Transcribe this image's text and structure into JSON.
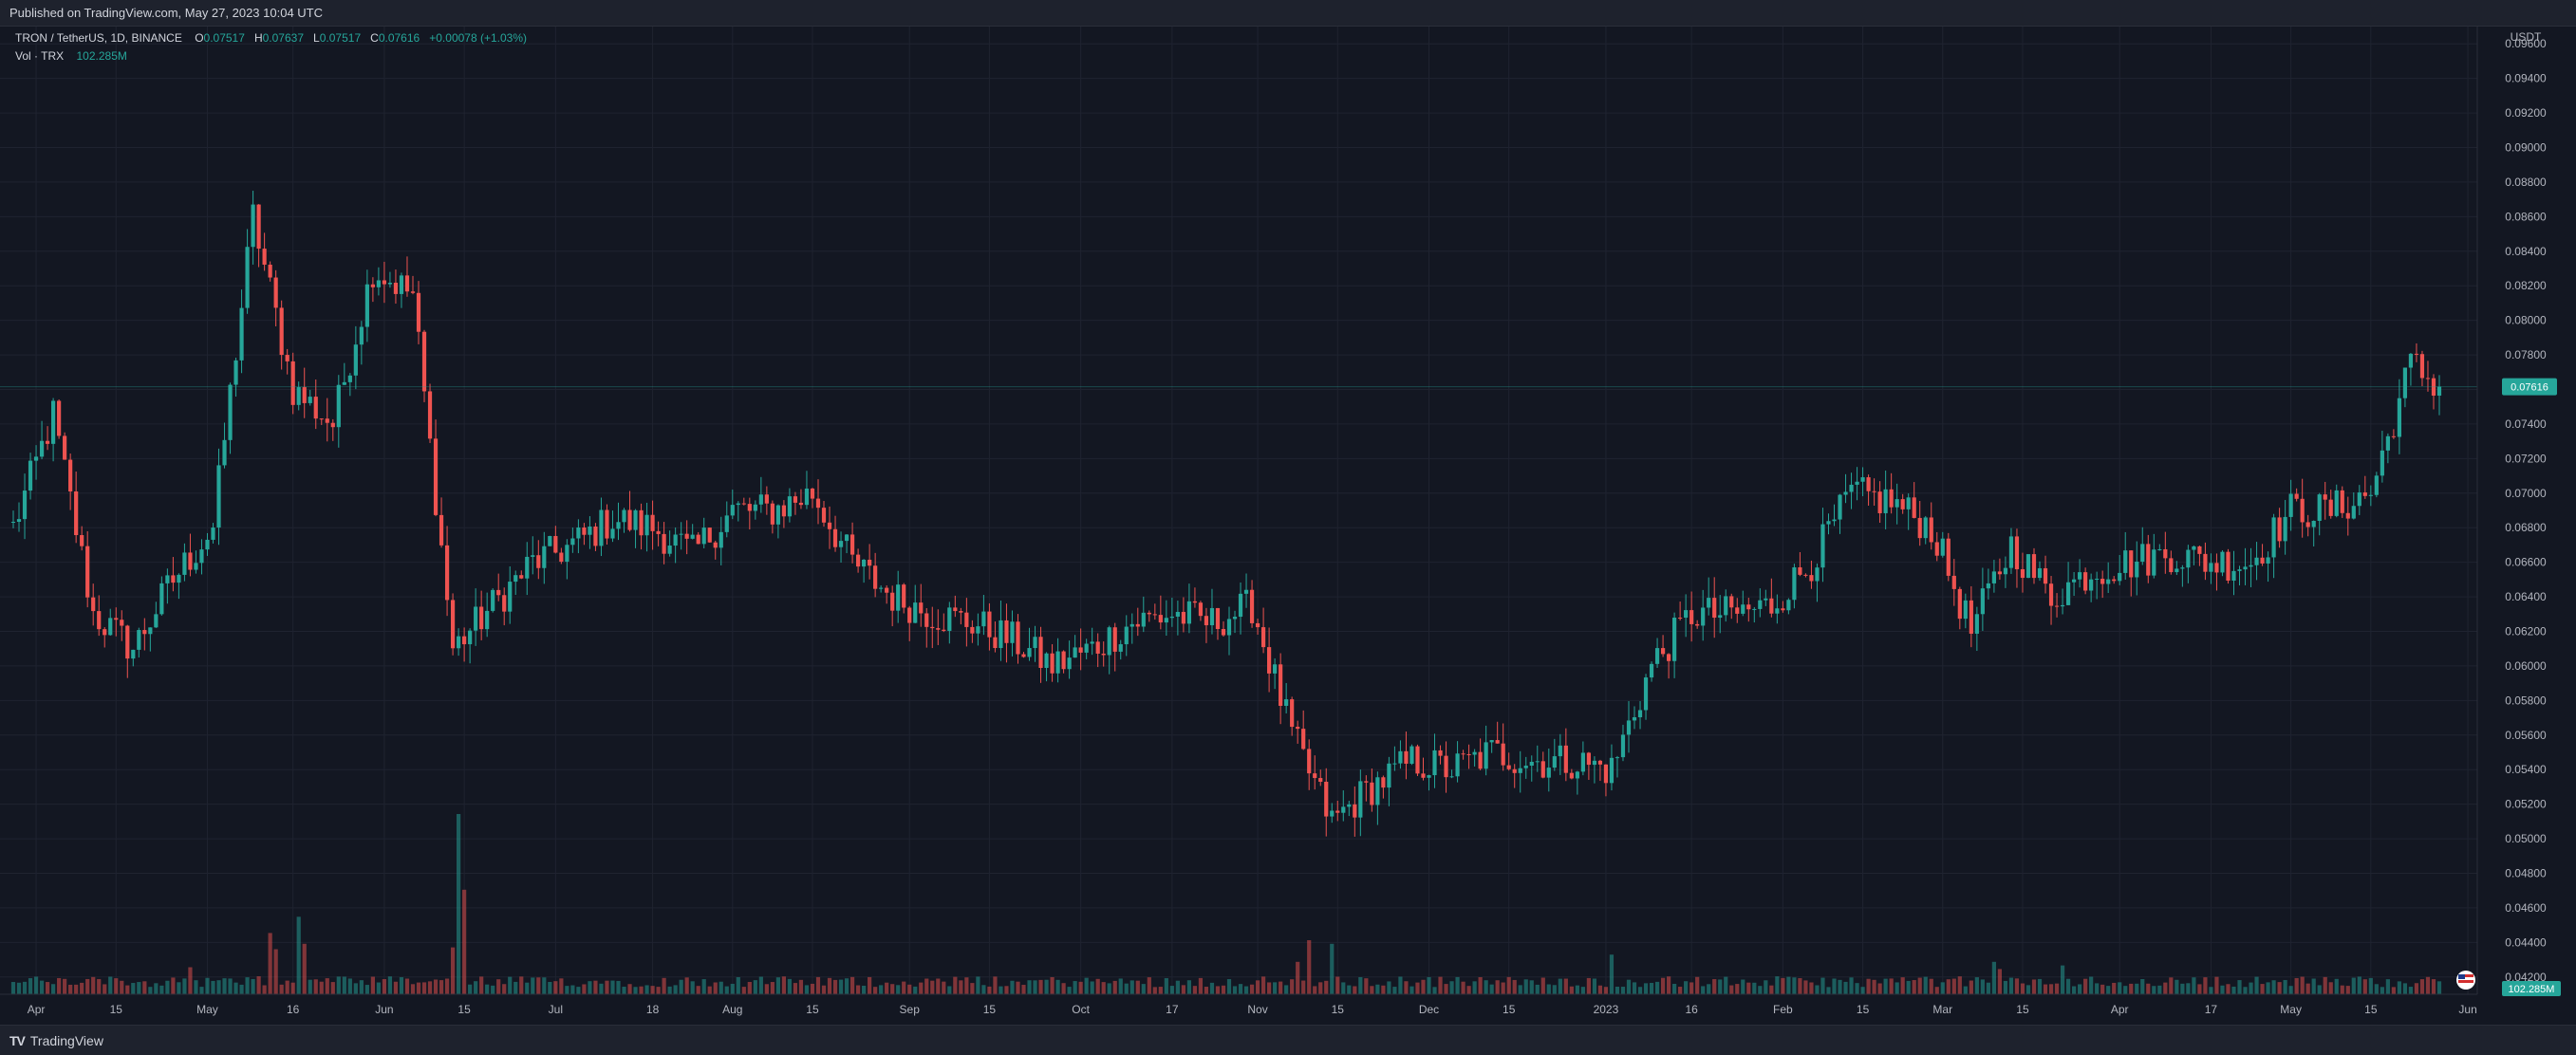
{
  "header": {
    "published": "Published on TradingView.com, May 27, 2023 10:04 UTC"
  },
  "legend": {
    "symbol": "TRON / TetherUS, 1D, BINANCE",
    "o_label": "O",
    "o": "0.07517",
    "h_label": "H",
    "h": "0.07637",
    "l_label": "L",
    "l": "0.07517",
    "c_label": "C",
    "c": "0.07616",
    "change": "+0.00078 (+1.03%)",
    "vol_label": "Vol · TRX",
    "vol": "102.285M"
  },
  "footer": {
    "brand": "TradingView"
  },
  "colors": {
    "up": "#26a69a",
    "down": "#ef5350",
    "background": "#131722",
    "grid": "#1f2330",
    "text": "#b2b5be"
  },
  "chart_data": {
    "type": "candlestick",
    "price_axis_unit": "USDT",
    "ylim": [
      0.041,
      0.097
    ],
    "y_ticks": [
      "0.09600",
      "0.09400",
      "0.09200",
      "0.09000",
      "0.08800",
      "0.08600",
      "0.08400",
      "0.08200",
      "0.08000",
      "0.07800",
      "0.07600",
      "0.07400",
      "0.07200",
      "0.07000",
      "0.06800",
      "0.06600",
      "0.06400",
      "0.06200",
      "0.06000",
      "0.05800",
      "0.05600",
      "0.05400",
      "0.05200",
      "0.05000",
      "0.04800",
      "0.04600",
      "0.04400",
      "0.04200"
    ],
    "x_ticks": [
      {
        "label": "Apr",
        "date": "2022-04-01"
      },
      {
        "label": "15",
        "date": "2022-04-15"
      },
      {
        "label": "May",
        "date": "2022-05-01"
      },
      {
        "label": "16",
        "date": "2022-05-16"
      },
      {
        "label": "Jun",
        "date": "2022-06-01"
      },
      {
        "label": "15",
        "date": "2022-06-15"
      },
      {
        "label": "Jul",
        "date": "2022-07-01"
      },
      {
        "label": "18",
        "date": "2022-07-18"
      },
      {
        "label": "Aug",
        "date": "2022-08-01"
      },
      {
        "label": "15",
        "date": "2022-08-15"
      },
      {
        "label": "Sep",
        "date": "2022-09-01"
      },
      {
        "label": "15",
        "date": "2022-09-15"
      },
      {
        "label": "Oct",
        "date": "2022-10-01"
      },
      {
        "label": "17",
        "date": "2022-10-17"
      },
      {
        "label": "Nov",
        "date": "2022-11-01"
      },
      {
        "label": "15",
        "date": "2022-11-15"
      },
      {
        "label": "Dec",
        "date": "2022-12-01"
      },
      {
        "label": "15",
        "date": "2022-12-15"
      },
      {
        "label": "2023",
        "date": "2023-01-01"
      },
      {
        "label": "16",
        "date": "2023-01-16"
      },
      {
        "label": "Feb",
        "date": "2023-02-01"
      },
      {
        "label": "15",
        "date": "2023-02-15"
      },
      {
        "label": "Mar",
        "date": "2023-03-01"
      },
      {
        "label": "15",
        "date": "2023-03-15"
      },
      {
        "label": "Apr",
        "date": "2023-04-01"
      },
      {
        "label": "17",
        "date": "2023-04-17"
      },
      {
        "label": "May",
        "date": "2023-05-01"
      },
      {
        "label": "15",
        "date": "2023-05-15"
      },
      {
        "label": "Jun",
        "date": "2023-06-01"
      }
    ],
    "last_price_label": "0.07616",
    "last_price": 0.07616,
    "last_volume_label": "102.285M",
    "weekly_close_path": [
      {
        "date": "2022-03-28",
        "close": 0.068
      },
      {
        "date": "2022-04-04",
        "close": 0.0745
      },
      {
        "date": "2022-04-11",
        "close": 0.063
      },
      {
        "date": "2022-04-18",
        "close": 0.061
      },
      {
        "date": "2022-04-25",
        "close": 0.065
      },
      {
        "date": "2022-05-02",
        "close": 0.068
      },
      {
        "date": "2022-05-09",
        "close": 0.086
      },
      {
        "date": "2022-05-16",
        "close": 0.076
      },
      {
        "date": "2022-05-23",
        "close": 0.074
      },
      {
        "date": "2022-05-30",
        "close": 0.083
      },
      {
        "date": "2022-06-06",
        "close": 0.0815
      },
      {
        "date": "2022-06-13",
        "close": 0.061
      },
      {
        "date": "2022-06-20",
        "close": 0.0635
      },
      {
        "date": "2022-06-27",
        "close": 0.066
      },
      {
        "date": "2022-07-04",
        "close": 0.067
      },
      {
        "date": "2022-07-11",
        "close": 0.0685
      },
      {
        "date": "2022-07-18",
        "close": 0.068
      },
      {
        "date": "2022-07-25",
        "close": 0.0665
      },
      {
        "date": "2022-08-01",
        "close": 0.069
      },
      {
        "date": "2022-08-08",
        "close": 0.069
      },
      {
        "date": "2022-08-15",
        "close": 0.07
      },
      {
        "date": "2022-08-22",
        "close": 0.066
      },
      {
        "date": "2022-08-29",
        "close": 0.064
      },
      {
        "date": "2022-09-05",
        "close": 0.063
      },
      {
        "date": "2022-09-12",
        "close": 0.0625
      },
      {
        "date": "2022-09-19",
        "close": 0.0615
      },
      {
        "date": "2022-09-26",
        "close": 0.06
      },
      {
        "date": "2022-10-03",
        "close": 0.061
      },
      {
        "date": "2022-10-10",
        "close": 0.0625
      },
      {
        "date": "2022-10-17",
        "close": 0.063
      },
      {
        "date": "2022-10-24",
        "close": 0.0625
      },
      {
        "date": "2022-10-31",
        "close": 0.0635
      },
      {
        "date": "2022-11-07",
        "close": 0.056
      },
      {
        "date": "2022-11-14",
        "close": 0.051
      },
      {
        "date": "2022-11-21",
        "close": 0.053
      },
      {
        "date": "2022-11-28",
        "close": 0.0545
      },
      {
        "date": "2022-12-05",
        "close": 0.054
      },
      {
        "date": "2022-12-12",
        "close": 0.055
      },
      {
        "date": "2022-12-19",
        "close": 0.0545
      },
      {
        "date": "2022-12-26",
        "close": 0.0545
      },
      {
        "date": "2023-01-02",
        "close": 0.054
      },
      {
        "date": "2023-01-09",
        "close": 0.06
      },
      {
        "date": "2023-01-16",
        "close": 0.063
      },
      {
        "date": "2023-01-23",
        "close": 0.063
      },
      {
        "date": "2023-01-30",
        "close": 0.0635
      },
      {
        "date": "2023-02-06",
        "close": 0.066
      },
      {
        "date": "2023-02-13",
        "close": 0.07
      },
      {
        "date": "2023-02-20",
        "close": 0.0695
      },
      {
        "date": "2023-02-27",
        "close": 0.068
      },
      {
        "date": "2023-03-06",
        "close": 0.062
      },
      {
        "date": "2023-03-13",
        "close": 0.067
      },
      {
        "date": "2023-03-20",
        "close": 0.064
      },
      {
        "date": "2023-03-27",
        "close": 0.0655
      },
      {
        "date": "2023-04-03",
        "close": 0.066
      },
      {
        "date": "2023-04-10",
        "close": 0.0665
      },
      {
        "date": "2023-04-17",
        "close": 0.066
      },
      {
        "date": "2023-04-24",
        "close": 0.066
      },
      {
        "date": "2023-05-01",
        "close": 0.069
      },
      {
        "date": "2023-05-08",
        "close": 0.069
      },
      {
        "date": "2023-05-15",
        "close": 0.07
      },
      {
        "date": "2023-05-22",
        "close": 0.0775
      },
      {
        "date": "2023-05-27",
        "close": 0.07616
      }
    ],
    "volume_spikes": [
      {
        "date": "2022-04-28",
        "volume": 0.15
      },
      {
        "date": "2022-05-12",
        "volume": 0.34
      },
      {
        "date": "2022-05-13",
        "volume": 0.25
      },
      {
        "date": "2022-05-17",
        "volume": 0.43
      },
      {
        "date": "2022-05-18",
        "volume": 0.28
      },
      {
        "date": "2022-06-13",
        "volume": 0.26
      },
      {
        "date": "2022-06-14",
        "volume": 1.0
      },
      {
        "date": "2022-06-15",
        "volume": 0.58
      },
      {
        "date": "2022-11-08",
        "volume": 0.18
      },
      {
        "date": "2022-11-10",
        "volume": 0.3
      },
      {
        "date": "2022-11-14",
        "volume": 0.28
      },
      {
        "date": "2023-01-02",
        "volume": 0.22
      },
      {
        "date": "2023-03-10",
        "volume": 0.18
      },
      {
        "date": "2023-03-11",
        "volume": 0.14
      },
      {
        "date": "2023-03-22",
        "volume": 0.16
      }
    ]
  }
}
